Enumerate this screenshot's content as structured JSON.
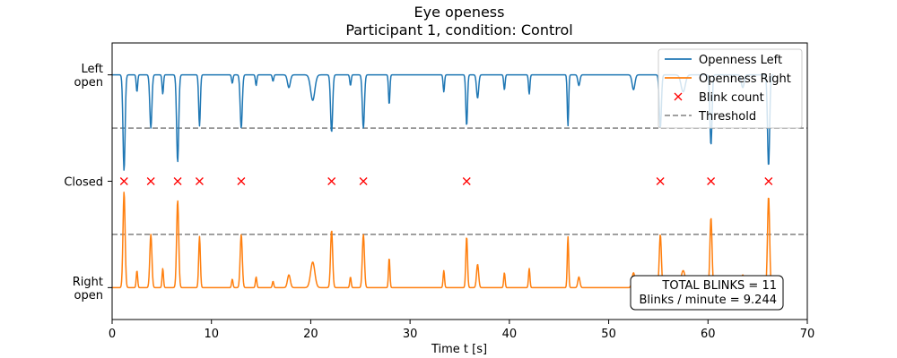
{
  "chart_data": {
    "type": "line",
    "title": "Eye openess",
    "subtitle": "Participant 1, condition: Control",
    "xlabel": "Time t [s]",
    "xlim": [
      0,
      70
    ],
    "x_ticks": [
      0,
      10,
      20,
      30,
      40,
      50,
      60,
      70
    ],
    "ylim": [
      -0.15,
      1.15
    ],
    "y_ticks": [
      {
        "value": 1.0,
        "lines": [
          "Left",
          "open"
        ]
      },
      {
        "value": 0.5,
        "lines": [
          "Closed"
        ]
      },
      {
        "value": 0.0,
        "lines": [
          "Right",
          "open"
        ]
      }
    ],
    "threshold_values": [
      0.75,
      0.25
    ],
    "blink_times": [
      1.2,
      3.9,
      6.6,
      8.8,
      13.0,
      22.1,
      25.3,
      35.7,
      55.2,
      60.3,
      66.1
    ],
    "dip_events": [
      {
        "t": 1.2,
        "depth": 0.45,
        "width": 0.15
      },
      {
        "t": 3.9,
        "depth": 0.25,
        "width": 0.15
      },
      {
        "t": 6.6,
        "depth": 0.41,
        "width": 0.15
      },
      {
        "t": 8.8,
        "depth": 0.24,
        "width": 0.12
      },
      {
        "t": 13.0,
        "depth": 0.25,
        "width": 0.15
      },
      {
        "t": 22.1,
        "depth": 0.27,
        "width": 0.15
      },
      {
        "t": 25.3,
        "depth": 0.25,
        "width": 0.15
      },
      {
        "t": 35.7,
        "depth": 0.24,
        "width": 0.12
      },
      {
        "t": 55.2,
        "depth": 0.25,
        "width": 0.15
      },
      {
        "t": 60.3,
        "depth": 0.33,
        "width": 0.15
      },
      {
        "t": 66.1,
        "depth": 0.43,
        "width": 0.15
      },
      {
        "t": 2.5,
        "depth": 0.08,
        "width": 0.1
      },
      {
        "t": 5.1,
        "depth": 0.09,
        "width": 0.1
      },
      {
        "t": 12.1,
        "depth": 0.04,
        "width": 0.1
      },
      {
        "t": 14.5,
        "depth": 0.05,
        "width": 0.1
      },
      {
        "t": 16.2,
        "depth": 0.03,
        "width": 0.1
      },
      {
        "t": 17.8,
        "depth": 0.06,
        "width": 0.2
      },
      {
        "t": 20.2,
        "depth": 0.12,
        "width": 0.3
      },
      {
        "t": 24.0,
        "depth": 0.05,
        "width": 0.1
      },
      {
        "t": 27.9,
        "depth": 0.14,
        "width": 0.1
      },
      {
        "t": 33.4,
        "depth": 0.08,
        "width": 0.1
      },
      {
        "t": 36.8,
        "depth": 0.11,
        "width": 0.15
      },
      {
        "t": 39.5,
        "depth": 0.07,
        "width": 0.1
      },
      {
        "t": 42.0,
        "depth": 0.09,
        "width": 0.1
      },
      {
        "t": 45.9,
        "depth": 0.24,
        "width": 0.1
      },
      {
        "t": 47.0,
        "depth": 0.05,
        "width": 0.15
      },
      {
        "t": 52.5,
        "depth": 0.07,
        "width": 0.2
      },
      {
        "t": 57.5,
        "depth": 0.08,
        "width": 0.3
      },
      {
        "t": 63.5,
        "depth": 0.06,
        "width": 0.2
      }
    ],
    "series": [
      {
        "name": "Openness Left",
        "color": "#1f77b4",
        "baseline": 1.0,
        "direction": -1
      },
      {
        "name": "Openness Right",
        "color": "#ff7f0e",
        "baseline": 0.0,
        "direction": 1
      }
    ],
    "legend": {
      "position": "upper right",
      "entries": [
        {
          "label": "Openness Left",
          "style": "line",
          "color": "#1f77b4"
        },
        {
          "label": "Openness Right",
          "style": "line",
          "color": "#ff7f0e"
        },
        {
          "label": "Blink count",
          "style": "x-marker",
          "color": "#ff0000"
        },
        {
          "label": "Threshold",
          "style": "dashed",
          "color": "#808080"
        }
      ]
    },
    "annotation": {
      "lines": [
        "TOTAL BLINKS = 11",
        "Blinks / minute = 9.244"
      ],
      "position": "lower right"
    }
  }
}
